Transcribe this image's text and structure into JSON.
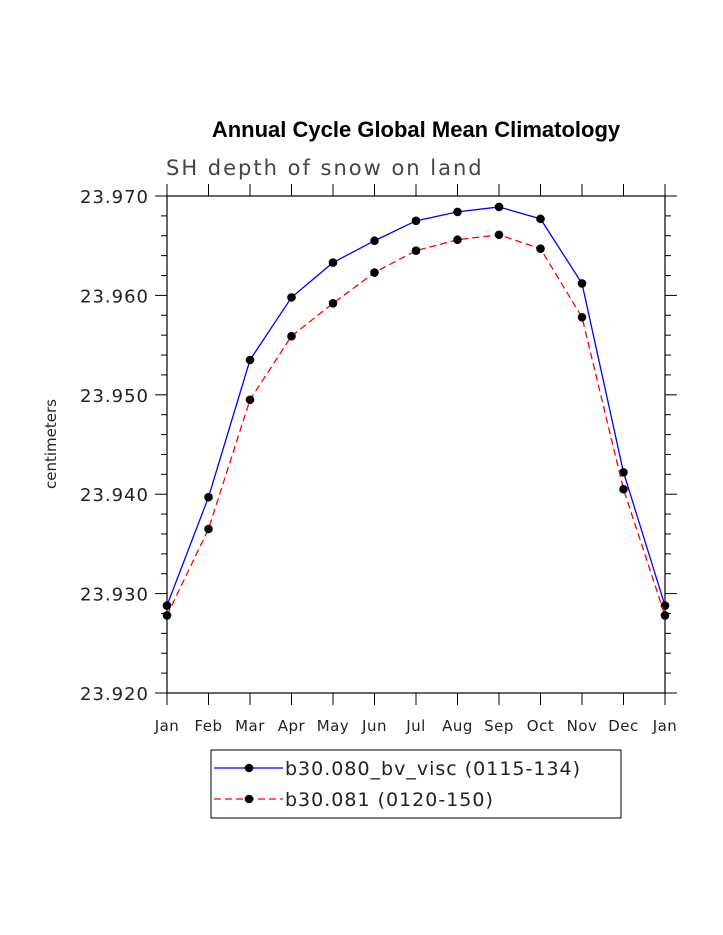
{
  "chart_data": {
    "type": "line",
    "title": "Annual Cycle Global Mean Climatology",
    "subtitle": "SH depth of snow on land",
    "xlabel": "",
    "ylabel": "centimeters",
    "categories": [
      "Jan",
      "Feb",
      "Mar",
      "Apr",
      "May",
      "Jun",
      "Jul",
      "Aug",
      "Sep",
      "Oct",
      "Nov",
      "Dec",
      "Jan"
    ],
    "ylim": [
      23.92,
      23.97
    ],
    "yticks": [
      "23.920",
      "23.930",
      "23.940",
      "23.950",
      "23.960",
      "23.970"
    ],
    "ytick_values": [
      23.92,
      23.93,
      23.94,
      23.95,
      23.96,
      23.97
    ],
    "grid": false,
    "legend_position": "bottom",
    "series": [
      {
        "name": "b30.080_bv_visc (0115-134)",
        "color": "#0000ff",
        "line_style": "solid",
        "marker": "filled-circle",
        "values": [
          23.9288,
          23.9397,
          23.9535,
          23.9598,
          23.9633,
          23.9655,
          23.9675,
          23.9684,
          23.9689,
          23.9677,
          23.9612,
          23.9422,
          23.9288
        ]
      },
      {
        "name": "b30.081 (0120-150)",
        "color": "#ff0000",
        "line_style": "dashed",
        "marker": "filled-circle",
        "values": [
          23.9278,
          23.9365,
          23.9495,
          23.9559,
          23.9592,
          23.9623,
          23.9645,
          23.9656,
          23.9661,
          23.9647,
          23.9578,
          23.9405,
          23.9278
        ]
      }
    ]
  }
}
